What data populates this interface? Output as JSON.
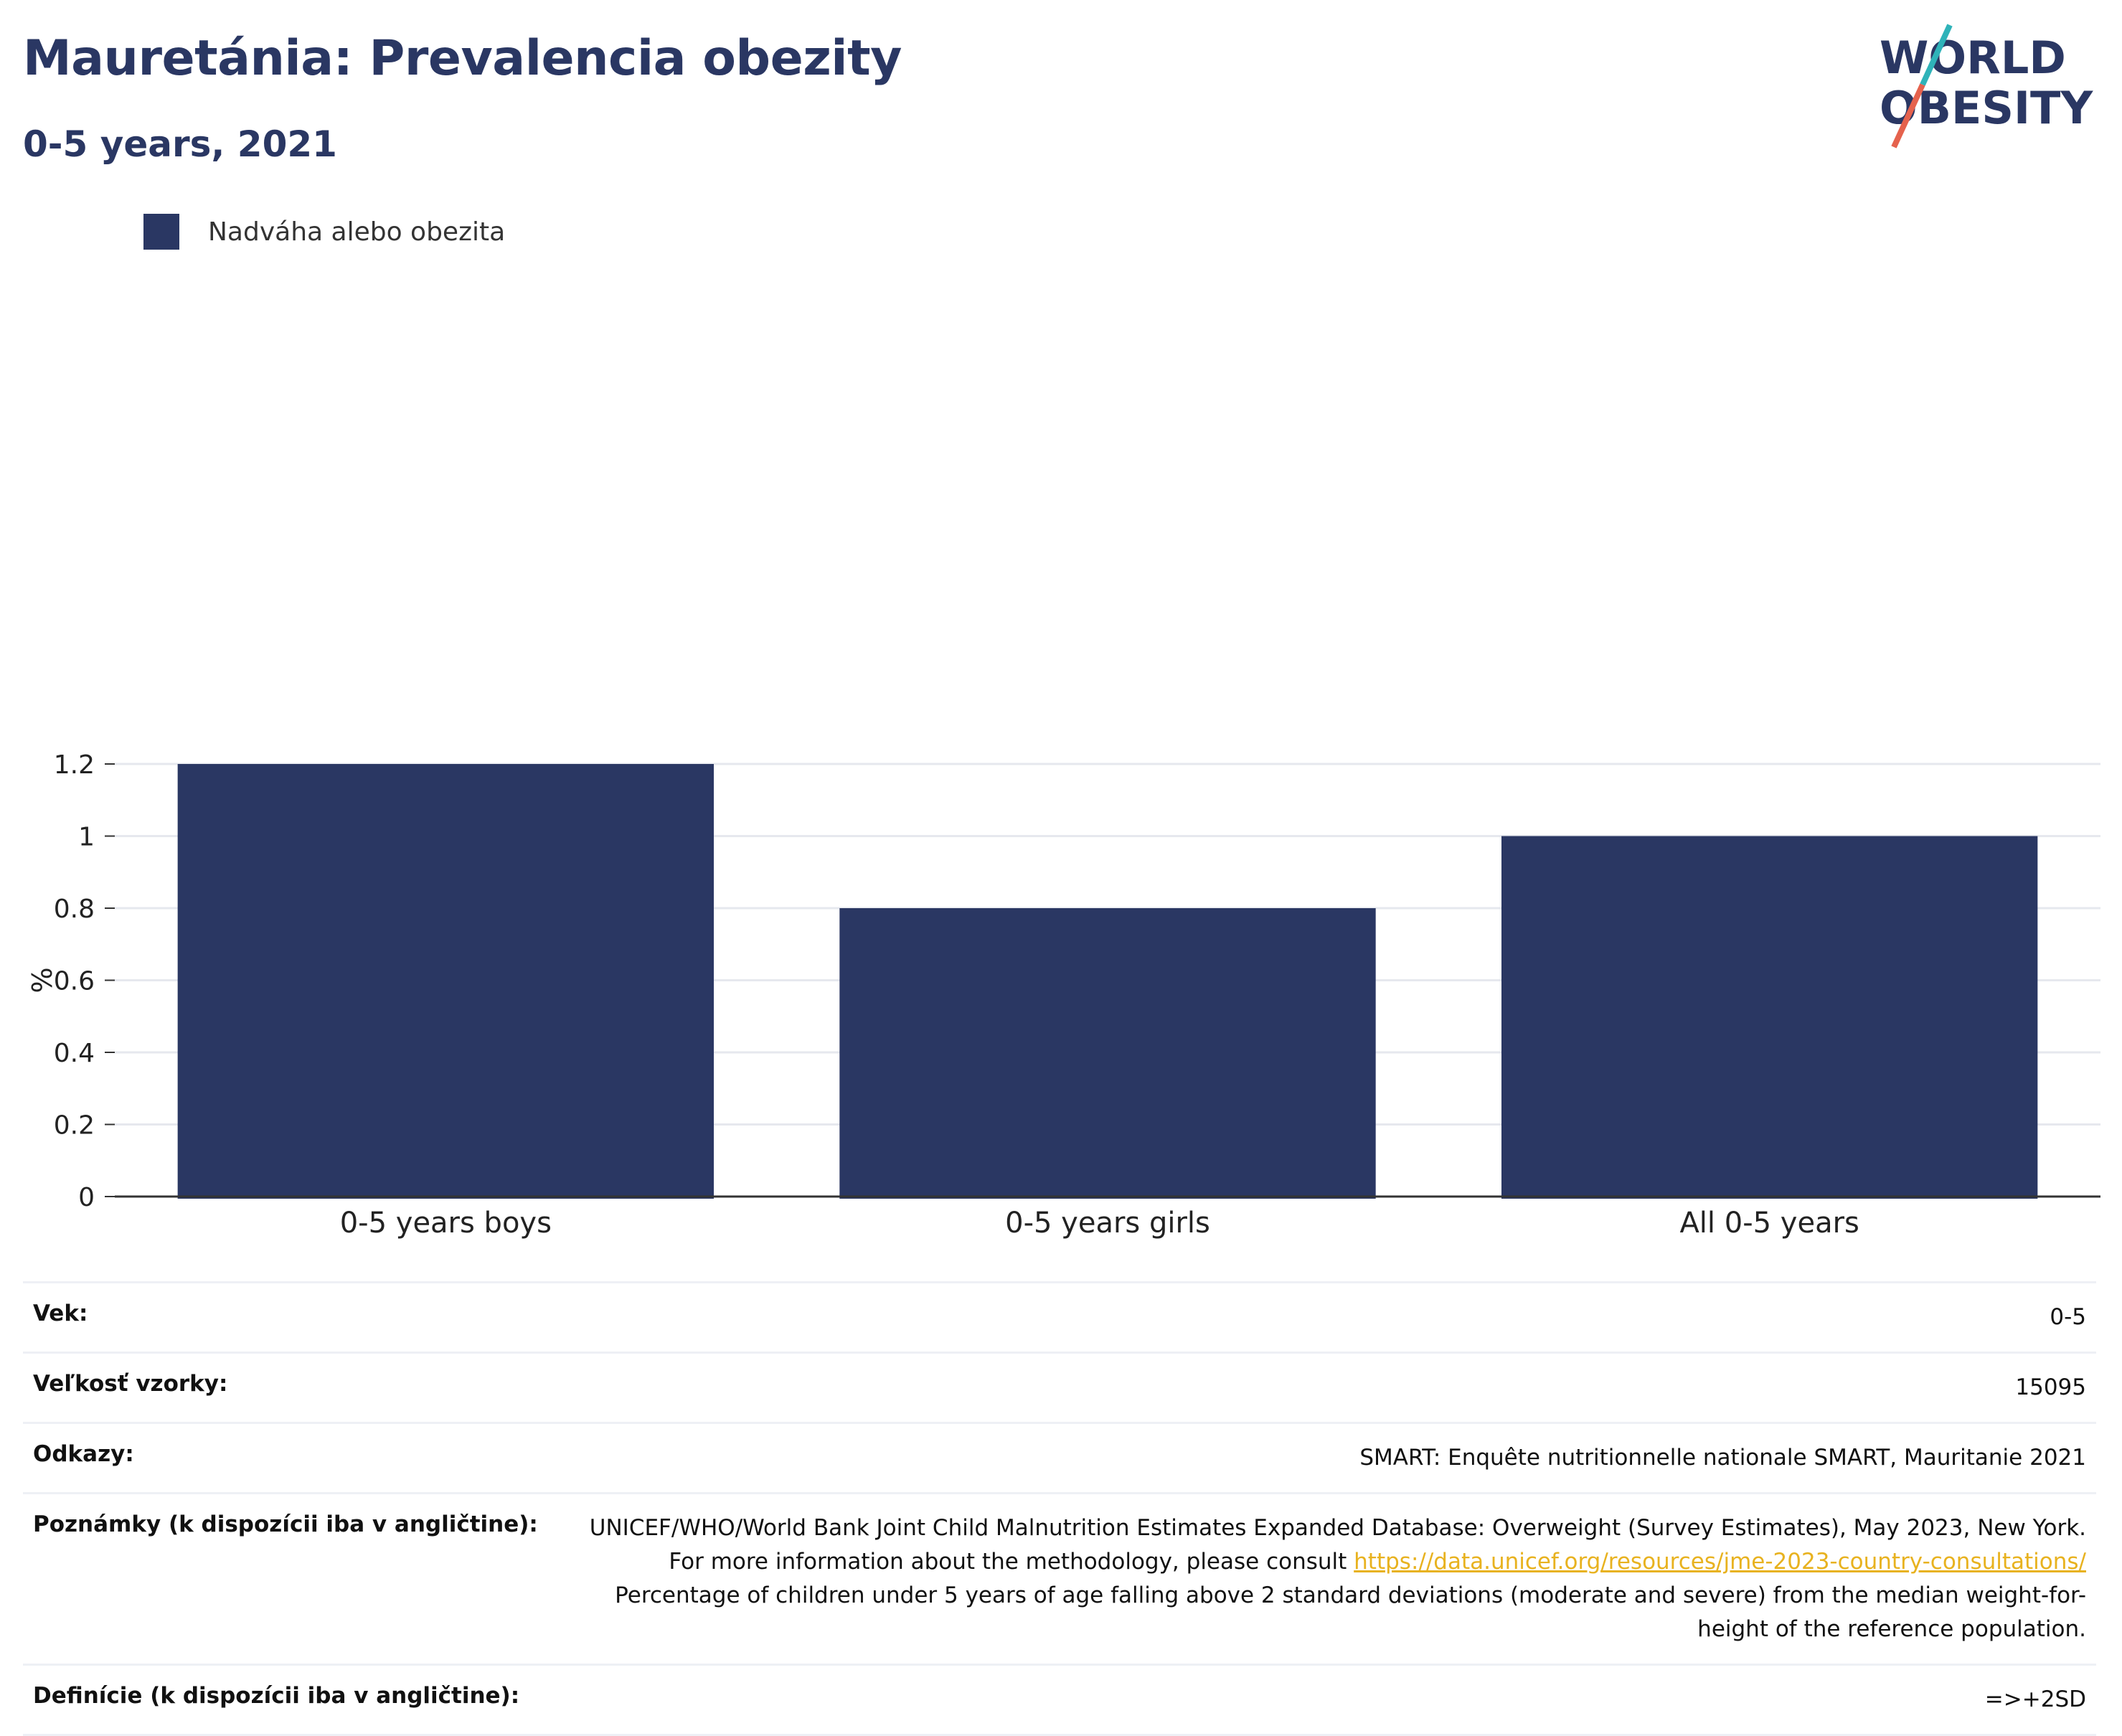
{
  "header": {
    "title": "Mauretánia: Prevalencia obezity",
    "subtitle": "0-5 years, 2021"
  },
  "logo": {
    "line1": "WORLD",
    "line2": "OBESITY"
  },
  "legend": {
    "label": "Nadváha alebo obezita",
    "color": "#2a3763"
  },
  "chart_data": {
    "type": "bar",
    "title": "Mauretánia: Prevalencia obezity",
    "subtitle": "0-5 years, 2021",
    "categories": [
      "0-5 years boys",
      "0-5 years girls",
      "All 0-5 years"
    ],
    "series": [
      {
        "name": "Nadváha alebo obezita",
        "values": [
          1.2,
          0.8,
          1.0
        ],
        "color": "#2a3763"
      }
    ],
    "ylabel": "%",
    "xlabel": "",
    "ylim": [
      0,
      1.2
    ],
    "yticks": [
      "0",
      "0.2",
      "0.4",
      "0.6",
      "0.8",
      "1",
      "1.2"
    ],
    "grid": true,
    "legend_position": "top-left"
  },
  "info": {
    "age_label": "Vek:",
    "age_value": "0-5",
    "sample_label": "Veľkosť vzorky:",
    "sample_value": "15095",
    "refs_label": "Odkazy:",
    "refs_value": "SMART: Enquête nutritionnelle nationale SMART, Mauritanie 2021",
    "notes_label": "Poznámky (k dispozícii iba v angličtine):",
    "notes_text_1": "UNICEF/WHO/World Bank Joint Child Malnutrition Estimates Expanded Database: Overweight (Survey Estimates), May 2023, New York. For more information about the methodology, please consult ",
    "notes_link": "https://data.unicef.org/resources/jme-2023-country-consultations/",
    "notes_text_2": " Percentage of children under 5 years of age falling above 2 standard deviations (moderate and severe) from the median weight-for-height of the reference population.",
    "defs_label": "Definície (k dispozícii iba v angličtine):",
    "defs_value": "=>+2SD"
  }
}
